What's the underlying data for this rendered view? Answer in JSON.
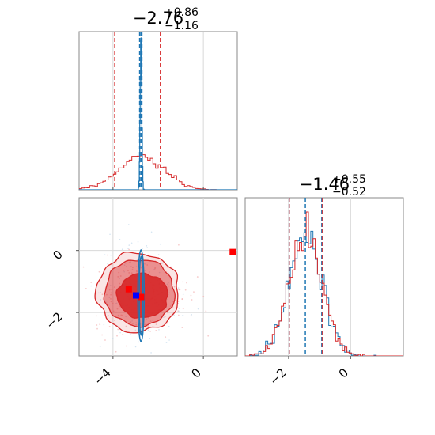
{
  "chart_data": {
    "type": "corner",
    "parameters": [
      {
        "title_main": "−2.76",
        "title_plus": "+0.86",
        "title_minus": "−1.16"
      },
      {
        "title_main": "−1.46",
        "title_plus": "+0.55",
        "title_minus": "−0.52"
      }
    ],
    "x_ticks_param1": [
      -4,
      0
    ],
    "x_ticks_param1_labels": [
      "−4",
      "0"
    ],
    "y_ticks_param2": [
      0,
      -2
    ],
    "y_ticks_param2_labels": [
      "0",
      "−2"
    ],
    "x_ticks_param2": [
      -2,
      0
    ],
    "x_ticks_param2_labels": [
      "−2",
      "0"
    ],
    "xlim_param1": [
      -5.5,
      1.5
    ],
    "ylim_param2": [
      -3.4,
      1.7
    ],
    "xlim_param2_hist": [
      -3.4,
      1.7
    ],
    "grid": true,
    "series": [
      {
        "color": "#d62728",
        "quantiles_param1": [
          -3.92,
          -2.76,
          -1.9
        ],
        "quantiles_param2": [
          -1.98,
          -1.46,
          -0.91
        ],
        "markers": [
          [
            -3.3,
            -1.25
          ],
          [
            -2.75,
            -1.5
          ],
          [
            1.3,
            -0.05
          ]
        ]
      },
      {
        "color": "#1f77b4",
        "quantiles_param1": [
          -2.82,
          -2.76,
          -2.72
        ],
        "quantiles_param2": [
          -1.98,
          -1.46,
          -0.93
        ],
        "markers": [
          [
            -2.98,
            -1.45
          ]
        ]
      }
    ]
  }
}
